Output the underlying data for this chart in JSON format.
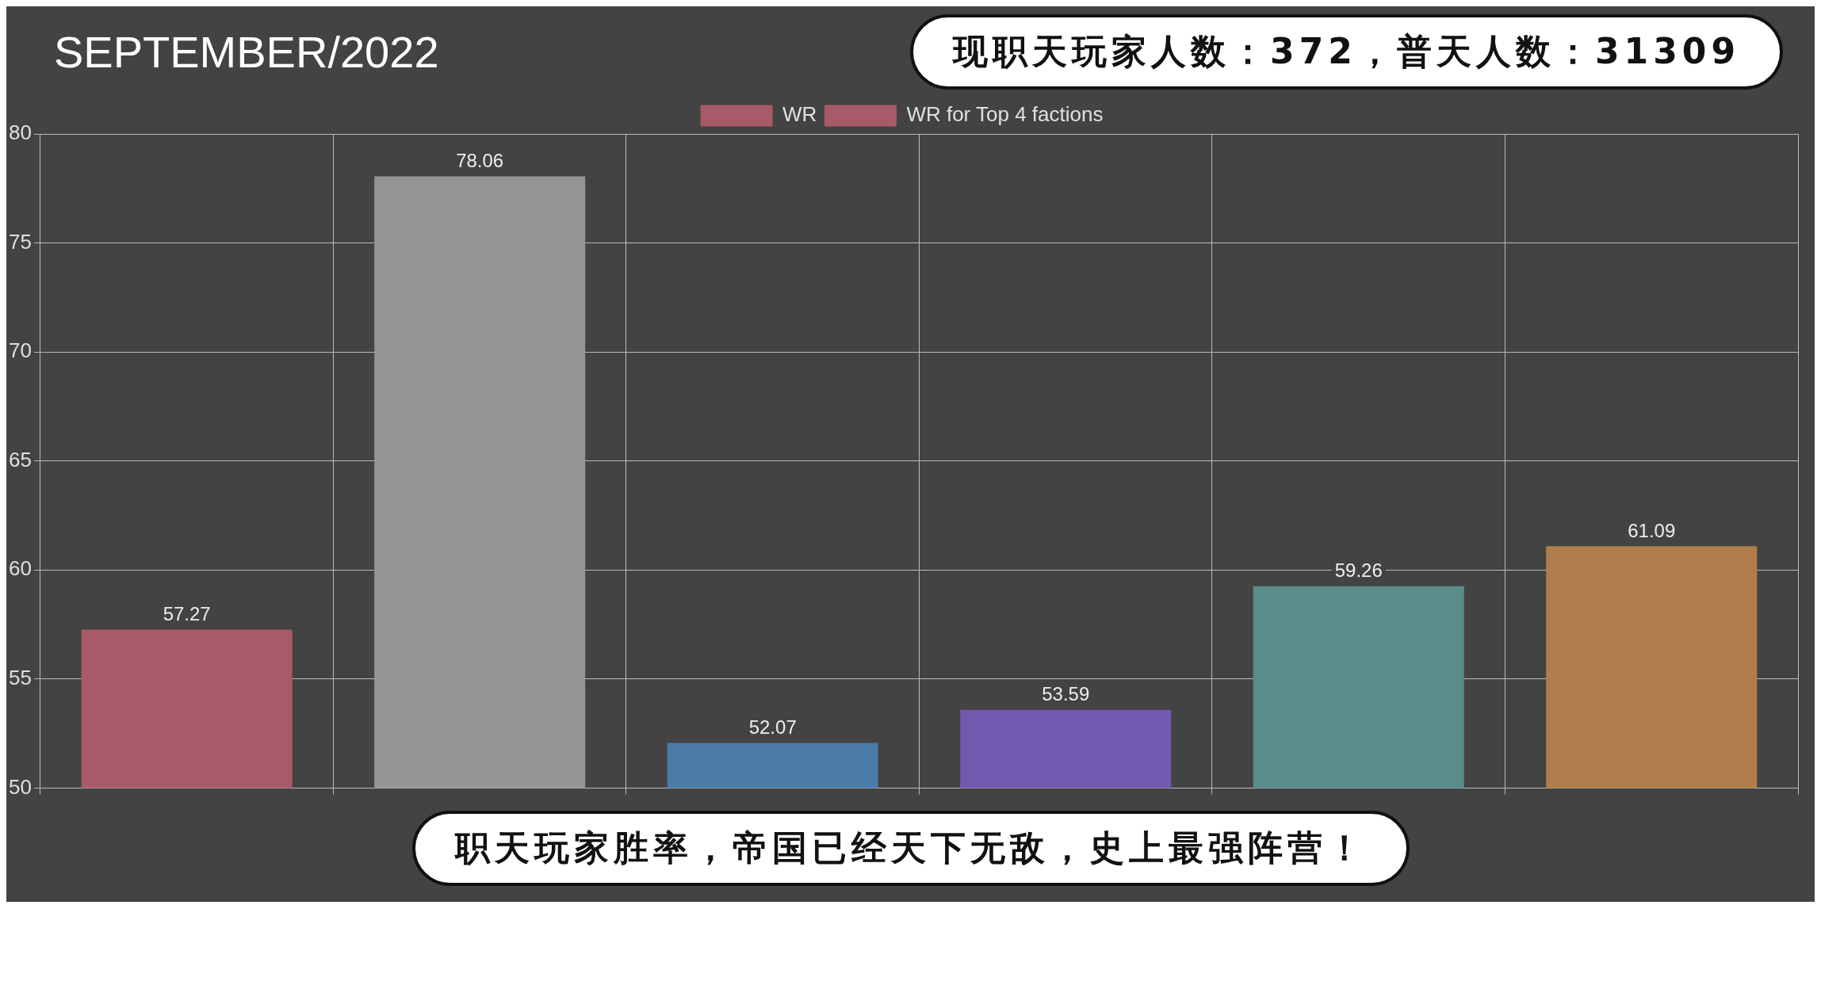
{
  "chart_data": {
    "type": "bar",
    "title": "SEPTEMBER/2022",
    "annotations": [
      "现职天玩家人数：372，普天人数：31309",
      "职天玩家胜率，帝国已经天下无敌，史上最强阵营！"
    ],
    "categories": [
      null,
      null,
      null,
      null,
      null,
      null
    ],
    "series": [
      {
        "name": "WR",
        "color": "#a85a68",
        "colors": [
          "#a85a68",
          "#979593",
          "#4a7aa8",
          "#7159b0",
          "#5a8c8a",
          "#b07d4c"
        ],
        "values": [
          57.27,
          78.06,
          52.07,
          53.59,
          59.26,
          61.09
        ]
      },
      {
        "name": "WR for Top 4 factions",
        "color": "#a85a68",
        "values": [
          null,
          null,
          null,
          null,
          null,
          null
        ]
      }
    ],
    "ylim": [
      50,
      80
    ],
    "yticks": [
      50,
      55,
      60,
      65,
      70,
      75,
      80
    ],
    "grid": true,
    "legend": "top",
    "data_labels": true,
    "tick_labels": "y"
  }
}
